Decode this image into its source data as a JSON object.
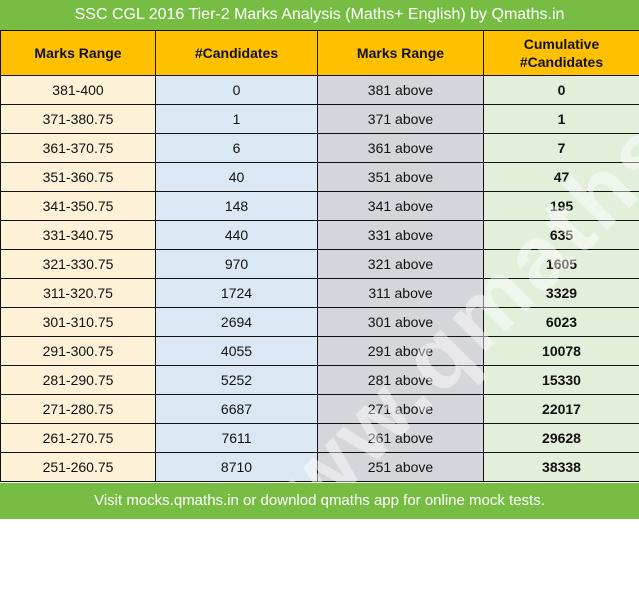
{
  "title": "SSC CGL 2016 Tier-2 Marks Analysis (Maths+ English) by Qmaths.in",
  "headers": [
    "Marks Range",
    "#Candidates",
    "Marks Range",
    "Cumulative #Candidates"
  ],
  "header_cumulative_line1": "Cumulative",
  "header_cumulative_line2": "#Candidates",
  "rows": [
    {
      "range": "381-400",
      "candidates": "0",
      "above": "381 above",
      "cumulative": "0"
    },
    {
      "range": "371-380.75",
      "candidates": "1",
      "above": "371 above",
      "cumulative": "1"
    },
    {
      "range": "361-370.75",
      "candidates": "6",
      "above": "361 above",
      "cumulative": "7"
    },
    {
      "range": "351-360.75",
      "candidates": "40",
      "above": "351 above",
      "cumulative": "47"
    },
    {
      "range": "341-350.75",
      "candidates": "148",
      "above": "341 above",
      "cumulative": "195"
    },
    {
      "range": "331-340.75",
      "candidates": "440",
      "above": "331 above",
      "cumulative": "635"
    },
    {
      "range": "321-330.75",
      "candidates": "970",
      "above": "321 above",
      "cumulative": "1605"
    },
    {
      "range": "311-320.75",
      "candidates": "1724",
      "above": "311 above",
      "cumulative": "3329"
    },
    {
      "range": "301-310.75",
      "candidates": "2694",
      "above": "301 above",
      "cumulative": "6023"
    },
    {
      "range": "291-300.75",
      "candidates": "4055",
      "above": "291 above",
      "cumulative": "10078"
    },
    {
      "range": "281-290.75",
      "candidates": "5252",
      "above": "281 above",
      "cumulative": "15330"
    },
    {
      "range": "271-280.75",
      "candidates": "6687",
      "above": "271 above",
      "cumulative": "22017"
    },
    {
      "range": "261-270.75",
      "candidates": "7611",
      "above": "261 above",
      "cumulative": "29628"
    },
    {
      "range": "251-260.75",
      "candidates": "8710",
      "above": "251 above",
      "cumulative": "38338"
    }
  ],
  "watermark": "www.qmaths.in",
  "footer": "Visit mocks.qmaths.in or downlod qmaths app for online mock tests."
}
